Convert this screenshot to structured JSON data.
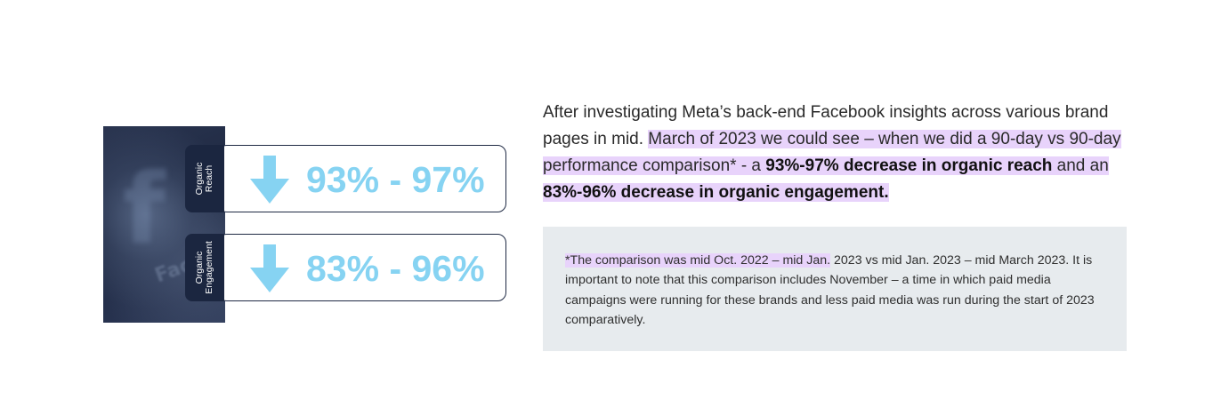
{
  "graphic": {
    "background_word": "Fac",
    "stats": [
      {
        "label": "Organic\nReach",
        "value": "93% - 97%",
        "arrow_icon": "arrow-down-icon"
      },
      {
        "label": "Organic\nEngagement",
        "value": "83% - 96%",
        "arrow_icon": "arrow-down-icon"
      }
    ],
    "colors": {
      "accent": "#86d3f2",
      "tab": "#1b2640",
      "border": "#1f2a44"
    }
  },
  "intro": {
    "plain_lead": "After investigating Meta’s back-end Facebook insights across various brand pages in mid. ",
    "hl_1": "March of 2023 we could see – when we did a 90-day vs 90-day performance comparison* - a ",
    "bold_1": "93%-97% decrease in organic reach",
    "hl_2": " and an ",
    "bold_2": "83%-96% decrease in organic engagement."
  },
  "note": {
    "highlighted": "*The comparison was mid Oct. 2022 – mid Jan.",
    "rest": " 2023 vs mid Jan. 2023 – mid March 2023. It is important to note that this comparison includes November – a time in which paid media campaigns were running for these brands and less paid media was run during the start of 2023 comparatively."
  },
  "colors": {
    "highlight": "#e8d3fb",
    "note_bg": "#e7ebee"
  }
}
